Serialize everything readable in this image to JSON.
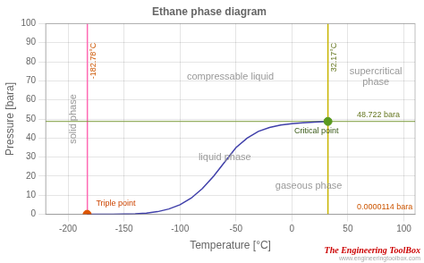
{
  "chart_data": {
    "type": "scatter",
    "title": "Ethane phase diagram",
    "xlabel": "Temperature [°C]",
    "ylabel": "Pressure [bara]",
    "xlim": [
      -220,
      110
    ],
    "ylim": [
      0,
      100
    ],
    "xticks": [
      -200,
      -150,
      -100,
      -50,
      0,
      50,
      100
    ],
    "yticks": [
      0,
      10,
      20,
      30,
      40,
      50,
      60,
      70,
      80,
      90,
      100
    ],
    "grid": true,
    "series": [
      {
        "type": "line",
        "color": "#4040aa",
        "x": [
          -183.0,
          -180,
          -170,
          -160,
          -150,
          -140,
          -130,
          -120,
          -110,
          -100,
          -90,
          -80,
          -70,
          -60,
          -50,
          -40,
          -30,
          -20,
          -10,
          0,
          10,
          20,
          32.17
        ],
        "values": [
          0.001,
          0.002,
          0.01,
          0.04,
          0.11,
          0.28,
          0.65,
          1.4,
          2.8,
          5.0,
          8.5,
          13.5,
          20.0,
          27.5,
          35.0,
          40.0,
          43.5,
          45.5,
          46.8,
          47.5,
          48.0,
          48.4,
          48.722
        ]
      },
      {
        "type": "scatter",
        "color": "#dd5500",
        "x": [
          -183.0
        ],
        "values": [
          0.0
        ]
      },
      {
        "type": "scatter",
        "color": "#5a9a20",
        "x": [
          32.17
        ],
        "values": [
          48.722
        ]
      }
    ],
    "vlines": [
      {
        "x": -182.78,
        "color": "#ff69b4",
        "label": "-182.78°C",
        "label_color": "#cc5500"
      },
      {
        "x": 32.17,
        "color": "#c8b400",
        "label": "32.17°C",
        "label_color": "#667722"
      }
    ],
    "hlines": [
      {
        "y": 48.722,
        "color": "#7a9a3a"
      }
    ],
    "phase_label_color": "#999999",
    "phase_labels": [
      {
        "text": "solid phase",
        "x": -195,
        "y": 50
      },
      {
        "text": "compressable liquid",
        "x": -55,
        "y": 72
      },
      {
        "text": "liquid phase",
        "x": -60,
        "y": 30
      },
      {
        "text": "gaseous phase",
        "x": 15,
        "y": 15
      },
      {
        "text": "supercritical\nphase",
        "x": 75,
        "y": 72
      }
    ],
    "annotations": [
      {
        "text": "Triple point",
        "x": -175.0,
        "y": 3.5,
        "color": "#cc4400"
      },
      {
        "text": "Critical point",
        "x": 2.17,
        "y": 41.722,
        "color": "#3a5a18"
      },
      {
        "text": "48.722 bara",
        "x": 58,
        "y": 50.222,
        "color": "#667722"
      },
      {
        "text": "0.0000114 bara",
        "x": 58,
        "y": 1.5,
        "color": "#cc5500"
      }
    ],
    "brand": [
      {
        "text": "The Engineering ToolBox",
        "color": "#cc0000"
      },
      {
        "text": "www.engineeringtoolbox.com",
        "color": "#aaaaaa"
      }
    ]
  }
}
